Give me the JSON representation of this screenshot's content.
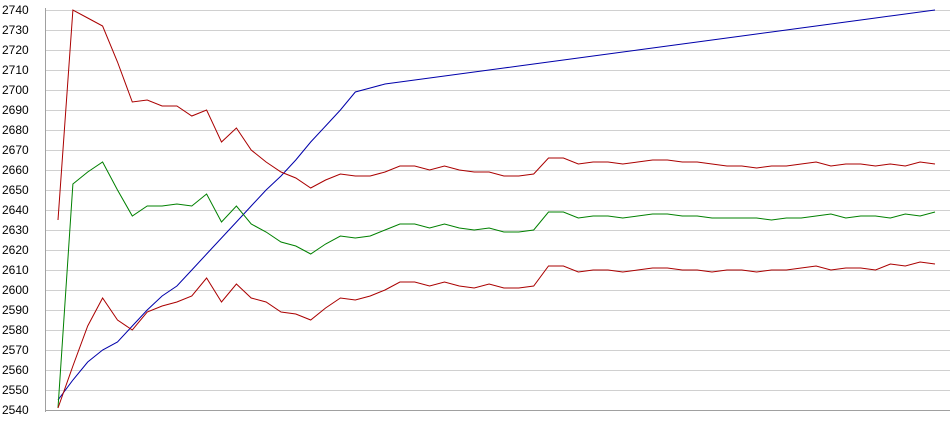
{
  "chart_data": {
    "type": "line",
    "title": "",
    "xlabel": "",
    "ylabel": "",
    "ylim": [
      2540,
      2740
    ],
    "yticks": [
      2540,
      2550,
      2560,
      2570,
      2580,
      2590,
      2600,
      2610,
      2620,
      2630,
      2640,
      2650,
      2660,
      2670,
      2680,
      2690,
      2700,
      2710,
      2720,
      2730,
      2740
    ],
    "x": [
      0,
      1,
      2,
      3,
      4,
      5,
      6,
      7,
      8,
      9,
      10,
      11,
      12,
      13,
      14,
      15,
      16,
      17,
      18,
      19,
      20,
      21,
      22,
      23,
      24,
      25,
      26,
      27,
      28,
      29,
      30,
      31,
      32,
      33,
      34,
      35,
      36,
      37,
      38,
      39,
      40,
      41,
      42,
      43,
      44,
      45,
      46,
      47,
      48,
      49,
      50,
      51,
      52,
      53,
      54,
      55,
      56,
      57,
      58,
      59
    ],
    "xlim": [
      0,
      59
    ],
    "grid": true,
    "legend": "none",
    "series": [
      {
        "color": "#0000aa",
        "values": [
          2545,
          2555,
          2564,
          2570,
          2574,
          2582,
          2590,
          2597,
          2602,
          2610,
          2618,
          2626,
          2634,
          2642,
          2650,
          2657,
          2665,
          2674,
          2682,
          2690,
          2699,
          2701,
          2703,
          2704,
          2705,
          2706,
          2707,
          2708,
          2709,
          2710,
          2711,
          2712,
          2713,
          2714,
          2715,
          2716,
          2717,
          2718,
          2719,
          2720,
          2721,
          2722,
          2723,
          2724,
          2725,
          2726,
          2727,
          2728,
          2729,
          2730,
          2731,
          2732,
          2733,
          2734,
          2735,
          2736,
          2737,
          2738,
          2739,
          2740
        ]
      },
      {
        "color": "#aa0000",
        "values": [
          2635,
          2740,
          2736,
          2732,
          2714,
          2694,
          2695,
          2692,
          2692,
          2687,
          2690,
          2674,
          2681,
          2670,
          2664,
          2659,
          2656,
          2651,
          2655,
          2658,
          2657,
          2657,
          2659,
          2662,
          2662,
          2660,
          2662,
          2660,
          2659,
          2659,
          2657,
          2657,
          2658,
          2666,
          2666,
          2663,
          2664,
          2664,
          2663,
          2664,
          2665,
          2665,
          2664,
          2664,
          2663,
          2662,
          2662,
          2661,
          2662,
          2662,
          2663,
          2664,
          2662,
          2663,
          2663,
          2662,
          2663,
          2662,
          2664,
          2663
        ]
      },
      {
        "color": "#008000",
        "values": [
          2541,
          2653,
          2659,
          2664,
          2650,
          2637,
          2642,
          2642,
          2643,
          2642,
          2648,
          2634,
          2642,
          2633,
          2629,
          2624,
          2622,
          2618,
          2623,
          2627,
          2626,
          2627,
          2630,
          2633,
          2633,
          2631,
          2633,
          2631,
          2630,
          2631,
          2629,
          2629,
          2630,
          2639,
          2639,
          2636,
          2637,
          2637,
          2636,
          2637,
          2638,
          2638,
          2637,
          2637,
          2636,
          2636,
          2636,
          2636,
          2635,
          2636,
          2636,
          2637,
          2638,
          2636,
          2637,
          2637,
          2636,
          2638,
          2637,
          2639
        ]
      },
      {
        "color": "#aa0000",
        "values": [
          2541,
          2562,
          2582,
          2596,
          2585,
          2580,
          2589,
          2592,
          2594,
          2597,
          2606,
          2594,
          2603,
          2596,
          2594,
          2589,
          2588,
          2585,
          2591,
          2596,
          2595,
          2597,
          2600,
          2604,
          2604,
          2602,
          2604,
          2602,
          2601,
          2603,
          2601,
          2601,
          2602,
          2612,
          2612,
          2609,
          2610,
          2610,
          2609,
          2610,
          2611,
          2611,
          2610,
          2610,
          2609,
          2610,
          2610,
          2609,
          2610,
          2610,
          2611,
          2612,
          2610,
          2611,
          2611,
          2610,
          2613,
          2612,
          2614,
          2613
        ]
      }
    ]
  }
}
